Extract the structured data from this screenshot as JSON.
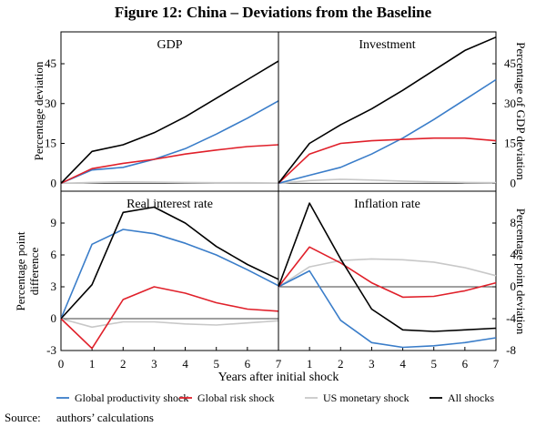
{
  "figure": {
    "title": "Figure 12: China – Deviations from the Baseline",
    "xlabel": "Years after initial shock",
    "source_label": "Source:",
    "source_text": "authors’ calculations"
  },
  "axis_labels": {
    "top_left": "Percentage deviation",
    "top_right": "Percentage of GDP deviation",
    "bottom_left_line1": "Percentage point",
    "bottom_left_line2": "difference",
    "bottom_right": "Percentage point deviation"
  },
  "colors": {
    "productivity": "#3a7dc9",
    "risk": "#e0202a",
    "monetary": "#c8c8c8",
    "all": "#000000"
  },
  "legend": [
    {
      "key": "productivity",
      "label": "Global productivity shock"
    },
    {
      "key": "risk",
      "label": "Global risk shock"
    },
    {
      "key": "monetary",
      "label": "US monetary shock"
    },
    {
      "key": "all",
      "label": "All shocks"
    }
  ],
  "chart_data": [
    {
      "type": "line",
      "title": "GDP",
      "x": [
        0,
        1,
        2,
        3,
        4,
        5,
        6,
        7
      ],
      "ylim": [
        -3,
        57
      ],
      "yticks": [
        0,
        15,
        30,
        45
      ],
      "ytick_side": "left",
      "series": [
        {
          "key": "monetary",
          "name": "US monetary shock",
          "values": [
            0,
            0.3,
            0.5,
            0.4,
            0.3,
            0.2,
            0.2,
            0.1
          ]
        },
        {
          "key": "productivity",
          "name": "Global productivity shock",
          "values": [
            0,
            5,
            6,
            9,
            13,
            18.5,
            24.5,
            31
          ]
        },
        {
          "key": "risk",
          "name": "Global risk shock",
          "values": [
            0,
            5.5,
            7.5,
            9,
            11,
            12.5,
            13.8,
            14.5
          ]
        },
        {
          "key": "all",
          "name": "All shocks",
          "values": [
            0,
            12,
            14.5,
            19,
            25,
            32,
            39,
            46
          ]
        }
      ]
    },
    {
      "type": "line",
      "title": "Investment",
      "x": [
        0,
        1,
        2,
        3,
        4,
        5,
        6,
        7
      ],
      "ylim": [
        -3,
        57
      ],
      "yticks": [
        0,
        15,
        30,
        45
      ],
      "ytick_side": "right",
      "series": [
        {
          "key": "monetary",
          "name": "US monetary shock",
          "values": [
            0,
            1,
            1.5,
            1.2,
            0.8,
            0.5,
            0.3,
            0.2
          ]
        },
        {
          "key": "productivity",
          "name": "Global productivity shock",
          "values": [
            0,
            3,
            6,
            11,
            17,
            24,
            31.5,
            39
          ]
        },
        {
          "key": "risk",
          "name": "Global risk shock",
          "values": [
            0,
            11,
            15,
            16,
            16.5,
            17,
            17,
            16
          ]
        },
        {
          "key": "all",
          "name": "All shocks",
          "values": [
            0,
            15,
            22,
            28,
            35,
            42.5,
            50,
            55
          ]
        }
      ]
    },
    {
      "type": "line",
      "title": "Real interest rate",
      "x": [
        0,
        1,
        2,
        3,
        4,
        5,
        6,
        7
      ],
      "ylim": [
        -3,
        12
      ],
      "yticks": [
        -3,
        0,
        3,
        6,
        9
      ],
      "ytick_side": "left",
      "series": [
        {
          "key": "monetary",
          "name": "US monetary shock",
          "values": [
            0,
            -0.8,
            -0.3,
            -0.3,
            -0.5,
            -0.6,
            -0.4,
            -0.2
          ]
        },
        {
          "key": "productivity",
          "name": "Global productivity shock",
          "values": [
            0,
            7,
            8.4,
            8,
            7.1,
            6,
            4.6,
            3.1
          ]
        },
        {
          "key": "risk",
          "name": "Global risk shock",
          "values": [
            0,
            -2.8,
            1.8,
            3,
            2.4,
            1.5,
            0.9,
            0.7
          ]
        },
        {
          "key": "all",
          "name": "All shocks",
          "values": [
            0,
            3.2,
            10,
            10.5,
            9,
            6.8,
            5.1,
            3.7
          ]
        }
      ]
    },
    {
      "type": "line",
      "title": "Inflation rate",
      "x": [
        0,
        1,
        2,
        3,
        4,
        5,
        6,
        7
      ],
      "ylim": [
        -8,
        12
      ],
      "yticks": [
        -8,
        -4,
        0,
        4,
        8
      ],
      "ytick_side": "right",
      "series": [
        {
          "key": "monetary",
          "name": "US monetary shock",
          "values": [
            0,
            2.5,
            3.3,
            3.5,
            3.4,
            3.1,
            2.4,
            1.4
          ]
        },
        {
          "key": "productivity",
          "name": "Global productivity shock",
          "values": [
            0,
            2,
            -4.2,
            -7,
            -7.6,
            -7.4,
            -7,
            -6.4
          ]
        },
        {
          "key": "risk",
          "name": "Global risk shock",
          "values": [
            0,
            5,
            3,
            0.5,
            -1.3,
            -1.2,
            -0.5,
            0.5
          ]
        },
        {
          "key": "all",
          "name": "All shocks",
          "values": [
            0,
            10.5,
            3.5,
            -2.8,
            -5.4,
            -5.6,
            -5.4,
            -5.2
          ]
        }
      ]
    }
  ]
}
